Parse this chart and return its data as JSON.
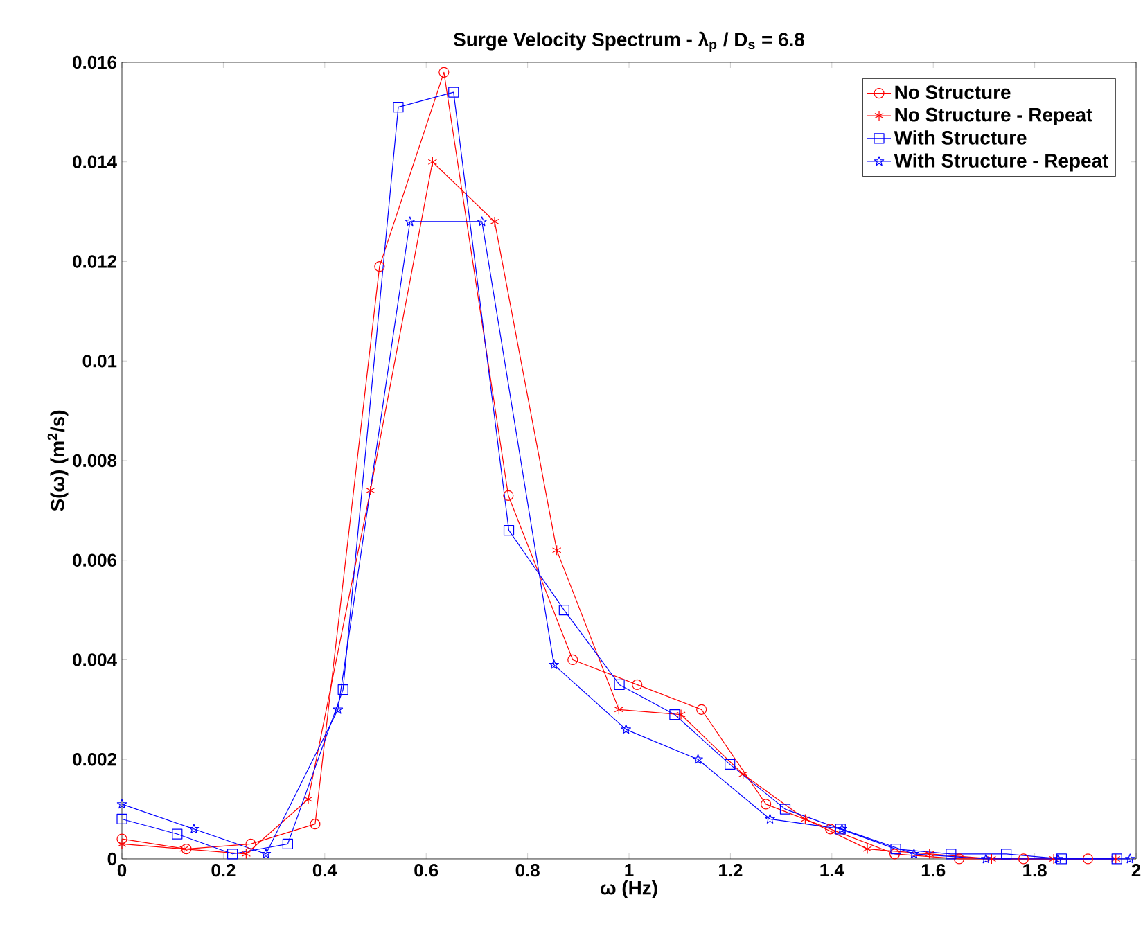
{
  "chart_data": {
    "type": "line",
    "title": "Surge Velocity Spectrum - λ$_{p}$ / D$_{s}$ = 6.8",
    "xlabel": "ω (Hz)",
    "ylabel": "S(ω) (m$^{2}$/s)",
    "xlim": [
      0,
      2
    ],
    "ylim": [
      0,
      0.016
    ],
    "xticks": [
      0,
      0.2,
      0.4,
      0.6,
      0.8,
      1,
      1.2,
      1.4,
      1.6,
      1.8,
      2
    ],
    "yticks": [
      0,
      0.002,
      0.004,
      0.006,
      0.008,
      0.01,
      0.012,
      0.014,
      0.016
    ],
    "legend": "top right",
    "grid": false,
    "line_style": "solid",
    "series": [
      {
        "name": "No Structure",
        "color": "#ff0000",
        "marker": "circle",
        "x": [
          0,
          0.127,
          0.254,
          0.381,
          0.508,
          0.635,
          0.762,
          0.889,
          1.016,
          1.143,
          1.27,
          1.397,
          1.524,
          1.651,
          1.778,
          1.905
        ],
        "values": [
          0.0004,
          0.0002,
          0.0003,
          0.0007,
          0.0119,
          0.0158,
          0.0073,
          0.004,
          0.0035,
          0.003,
          0.0011,
          0.0006,
          0.0001,
          0,
          0,
          0
        ]
      },
      {
        "name": "No Structure - Repeat",
        "color": "#ff0000",
        "marker": "cross",
        "x": [
          0,
          0.1225,
          0.245,
          0.3675,
          0.49,
          0.6125,
          0.735,
          0.8575,
          0.98,
          1.1025,
          1.225,
          1.3475,
          1.47,
          1.5925,
          1.715,
          1.8375,
          1.96
        ],
        "values": [
          0.0003,
          0.0002,
          0.0001,
          0.0012,
          0.0074,
          0.014,
          0.0128,
          0.0062,
          0.003,
          0.0029,
          0.0017,
          0.0008,
          0.0002,
          0.0001,
          0,
          0,
          0
        ]
      },
      {
        "name": "With Structure",
        "color": "#0000ff",
        "marker": "square",
        "x": [
          0,
          0.109,
          0.218,
          0.327,
          0.436,
          0.545,
          0.654,
          0.763,
          0.872,
          0.981,
          1.09,
          1.199,
          1.308,
          1.417,
          1.526,
          1.635,
          1.744,
          1.853,
          1.962
        ],
        "values": [
          0.0008,
          0.0005,
          0.0001,
          0.0003,
          0.0034,
          0.0151,
          0.0154,
          0.0066,
          0.005,
          0.0035,
          0.0029,
          0.0019,
          0.001,
          0.0006,
          0.0002,
          0.0001,
          0.0001,
          0,
          0
        ]
      },
      {
        "name": "With Structure - Repeat",
        "color": "#0000ff",
        "marker": "star",
        "x": [
          0,
          0.142,
          0.284,
          0.426,
          0.568,
          0.71,
          0.852,
          0.994,
          1.136,
          1.278,
          1.42,
          1.562,
          1.704,
          1.846,
          1.988
        ],
        "values": [
          0.0011,
          0.0006,
          0.0001,
          0.003,
          0.0128,
          0.0128,
          0.0039,
          0.0026,
          0.002,
          0.0008,
          0.0006,
          0.0001,
          0,
          0,
          0
        ]
      }
    ]
  }
}
